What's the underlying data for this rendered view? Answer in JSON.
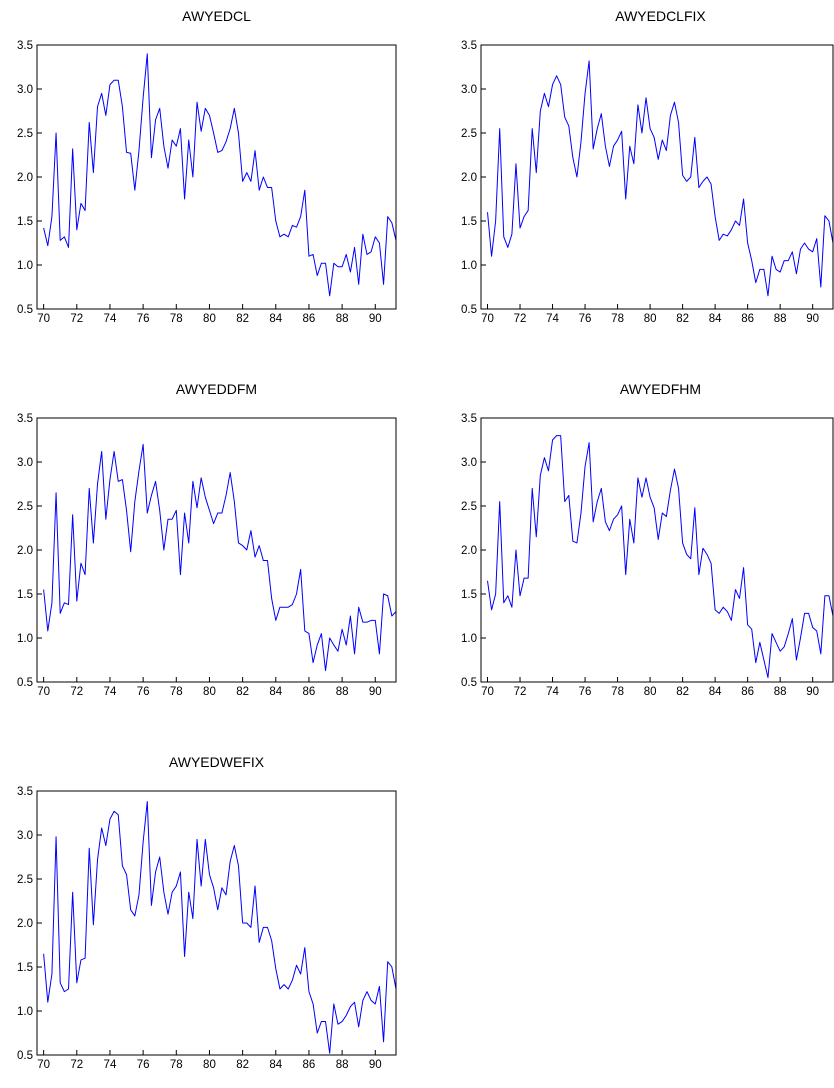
{
  "chart_data": [
    {
      "type": "line",
      "title": "AWYEDCL",
      "color": "#0000ff",
      "x": [
        70,
        70.25,
        70.5,
        70.75,
        71,
        71.25,
        71.5,
        71.75,
        72,
        72.25,
        72.5,
        72.75,
        73,
        73.25,
        73.5,
        73.75,
        74,
        74.25,
        74.5,
        74.75,
        75,
        75.25,
        75.5,
        75.75,
        76,
        76.25,
        76.5,
        76.75,
        77,
        77.25,
        77.5,
        77.75,
        78,
        78.25,
        78.5,
        78.75,
        79,
        79.25,
        79.5,
        79.75,
        80,
        80.25,
        80.5,
        80.75,
        81,
        81.25,
        81.5,
        81.75,
        82,
        82.25,
        82.5,
        82.75,
        83,
        83.25,
        83.5,
        83.75,
        84,
        84.25,
        84.5,
        84.75,
        85,
        85.25,
        85.5,
        85.75,
        86,
        86.25,
        86.5,
        86.75,
        87,
        87.25,
        87.5,
        87.75,
        88,
        88.25,
        88.5,
        88.75,
        89,
        89.25,
        89.5,
        89.75,
        90,
        90.25,
        90.5,
        90.75,
        91,
        91.25
      ],
      "values": [
        1.42,
        1.22,
        1.55,
        2.5,
        1.28,
        1.32,
        1.2,
        2.32,
        1.4,
        1.7,
        1.62,
        2.62,
        2.05,
        2.8,
        2.95,
        2.7,
        3.05,
        3.1,
        3.1,
        2.8,
        2.28,
        2.27,
        1.85,
        2.3,
        2.9,
        3.4,
        2.22,
        2.65,
        2.78,
        2.35,
        2.1,
        2.42,
        2.35,
        2.55,
        1.75,
        2.42,
        2.0,
        2.85,
        2.52,
        2.78,
        2.7,
        2.5,
        2.28,
        2.3,
        2.4,
        2.55,
        2.78,
        2.5,
        1.95,
        2.05,
        1.95,
        2.3,
        1.85,
        2.0,
        1.88,
        1.88,
        1.5,
        1.32,
        1.35,
        1.32,
        1.45,
        1.43,
        1.55,
        1.85,
        1.1,
        1.12,
        0.88,
        1.02,
        1.02,
        0.65,
        1.02,
        0.98,
        0.98,
        1.12,
        0.92,
        1.2,
        0.78,
        1.35,
        1.12,
        1.15,
        1.32,
        1.25,
        0.78,
        1.55,
        1.48,
        1.28
      ],
      "xlim": [
        69.6,
        91.25
      ],
      "xticks": [
        70,
        72,
        74,
        76,
        78,
        80,
        82,
        84,
        86,
        88,
        90
      ],
      "ylim": [
        0.5,
        3.5
      ],
      "yticks": [
        0.5,
        {
          "value": 1,
          "label": "1.0"
        },
        1.5,
        {
          "value": 2,
          "label": "2.0"
        },
        2.5,
        {
          "value": 3,
          "label": "3.0"
        },
        3.5
      ]
    },
    {
      "type": "line",
      "title": "AWYEDCLFIX",
      "color": "#0000ff",
      "x": [
        70,
        70.25,
        70.5,
        70.75,
        71,
        71.25,
        71.5,
        71.75,
        72,
        72.25,
        72.5,
        72.75,
        73,
        73.25,
        73.5,
        73.75,
        74,
        74.25,
        74.5,
        74.75,
        75,
        75.25,
        75.5,
        75.75,
        76,
        76.25,
        76.5,
        76.75,
        77,
        77.25,
        77.5,
        77.75,
        78,
        78.25,
        78.5,
        78.75,
        79,
        79.25,
        79.5,
        79.75,
        80,
        80.25,
        80.5,
        80.75,
        81,
        81.25,
        81.5,
        81.75,
        82,
        82.25,
        82.5,
        82.75,
        83,
        83.25,
        83.5,
        83.75,
        84,
        84.25,
        84.5,
        84.75,
        85,
        85.25,
        85.5,
        85.75,
        86,
        86.25,
        86.5,
        86.75,
        87,
        87.25,
        87.5,
        87.75,
        88,
        88.25,
        88.5,
        88.75,
        89,
        89.25,
        89.5,
        89.75,
        90,
        90.25,
        90.5,
        90.75,
        91,
        91.25
      ],
      "values": [
        1.6,
        1.1,
        1.5,
        2.55,
        1.32,
        1.2,
        1.35,
        2.15,
        1.42,
        1.55,
        1.62,
        2.55,
        2.05,
        2.75,
        2.95,
        2.8,
        3.05,
        3.15,
        3.05,
        2.68,
        2.58,
        2.22,
        2.0,
        2.4,
        2.95,
        3.32,
        2.32,
        2.55,
        2.72,
        2.35,
        2.12,
        2.35,
        2.42,
        2.52,
        1.75,
        2.35,
        2.15,
        2.82,
        2.5,
        2.9,
        2.55,
        2.45,
        2.2,
        2.42,
        2.3,
        2.7,
        2.85,
        2.62,
        2.02,
        1.95,
        2.0,
        2.45,
        1.88,
        1.95,
        2.0,
        1.92,
        1.55,
        1.28,
        1.35,
        1.33,
        1.4,
        1.5,
        1.45,
        1.75,
        1.25,
        1.05,
        0.8,
        0.95,
        0.95,
        0.65,
        1.1,
        0.95,
        0.92,
        1.05,
        1.05,
        1.15,
        0.9,
        1.18,
        1.25,
        1.18,
        1.15,
        1.3,
        0.75,
        1.56,
        1.5,
        1.25
      ],
      "xlim": [
        69.6,
        91.25
      ],
      "xticks": [
        70,
        72,
        74,
        76,
        78,
        80,
        82,
        84,
        86,
        88,
        90
      ],
      "ylim": [
        0.5,
        3.5
      ],
      "yticks": [
        0.5,
        {
          "value": 1,
          "label": "1.0"
        },
        1.5,
        {
          "value": 2,
          "label": "2.0"
        },
        2.5,
        {
          "value": 3,
          "label": "3.0"
        },
        3.5
      ]
    },
    {
      "type": "line",
      "title": "AWYEDDFM",
      "color": "#0000ff",
      "x": [
        70,
        70.25,
        70.5,
        70.75,
        71,
        71.25,
        71.5,
        71.75,
        72,
        72.25,
        72.5,
        72.75,
        73,
        73.25,
        73.5,
        73.75,
        74,
        74.25,
        74.5,
        74.75,
        75,
        75.25,
        75.5,
        75.75,
        76,
        76.25,
        76.5,
        76.75,
        77,
        77.25,
        77.5,
        77.75,
        78,
        78.25,
        78.5,
        78.75,
        79,
        79.25,
        79.5,
        79.75,
        80,
        80.25,
        80.5,
        80.75,
        81,
        81.25,
        81.5,
        81.75,
        82,
        82.25,
        82.5,
        82.75,
        83,
        83.25,
        83.5,
        83.75,
        84,
        84.25,
        84.5,
        84.75,
        85,
        85.25,
        85.5,
        85.75,
        86,
        86.25,
        86.5,
        86.75,
        87,
        87.25,
        87.5,
        87.75,
        88,
        88.25,
        88.5,
        88.75,
        89,
        89.25,
        89.5,
        89.75,
        90,
        90.25,
        90.5,
        90.75,
        91,
        91.25
      ],
      "values": [
        1.55,
        1.08,
        1.4,
        2.65,
        1.28,
        1.4,
        1.38,
        2.4,
        1.42,
        1.85,
        1.72,
        2.7,
        2.08,
        2.75,
        3.12,
        2.35,
        2.8,
        3.12,
        2.78,
        2.8,
        2.45,
        1.98,
        2.55,
        2.9,
        3.2,
        2.42,
        2.62,
        2.78,
        2.45,
        2.0,
        2.35,
        2.35,
        2.45,
        1.72,
        2.42,
        2.08,
        2.78,
        2.48,
        2.82,
        2.6,
        2.45,
        2.3,
        2.42,
        2.42,
        2.62,
        2.88,
        2.55,
        2.08,
        2.05,
        2.0,
        2.22,
        1.92,
        2.05,
        1.88,
        1.88,
        1.45,
        1.2,
        1.35,
        1.35,
        1.35,
        1.38,
        1.5,
        1.78,
        1.08,
        1.05,
        0.72,
        0.92,
        1.05,
        0.63,
        1.0,
        0.92,
        0.85,
        1.1,
        0.92,
        1.25,
        0.82,
        1.35,
        1.18,
        1.18,
        1.2,
        1.2,
        0.82,
        1.5,
        1.48,
        1.25,
        1.3
      ],
      "xlim": [
        69.6,
        91.25
      ],
      "xticks": [
        70,
        72,
        74,
        76,
        78,
        80,
        82,
        84,
        86,
        88,
        90
      ],
      "ylim": [
        0.5,
        3.5
      ],
      "yticks": [
        0.5,
        {
          "value": 1,
          "label": "1.0"
        },
        1.5,
        {
          "value": 2,
          "label": "2.0"
        },
        2.5,
        {
          "value": 3,
          "label": "3.0"
        },
        3.5
      ]
    },
    {
      "type": "line",
      "title": "AWYEDFHM",
      "color": "#0000ff",
      "x": [
        70,
        70.25,
        70.5,
        70.75,
        71,
        71.25,
        71.5,
        71.75,
        72,
        72.25,
        72.5,
        72.75,
        73,
        73.25,
        73.5,
        73.75,
        74,
        74.25,
        74.5,
        74.75,
        75,
        75.25,
        75.5,
        75.75,
        76,
        76.25,
        76.5,
        76.75,
        77,
        77.25,
        77.5,
        77.75,
        78,
        78.25,
        78.5,
        78.75,
        79,
        79.25,
        79.5,
        79.75,
        80,
        80.25,
        80.5,
        80.75,
        81,
        81.25,
        81.5,
        81.75,
        82,
        82.25,
        82.5,
        82.75,
        83,
        83.25,
        83.5,
        83.75,
        84,
        84.25,
        84.5,
        84.75,
        85,
        85.25,
        85.5,
        85.75,
        86,
        86.25,
        86.5,
        86.75,
        87,
        87.25,
        87.5,
        87.75,
        88,
        88.25,
        88.5,
        88.75,
        89,
        89.25,
        89.5,
        89.75,
        90,
        90.25,
        90.5,
        90.75,
        91,
        91.25
      ],
      "values": [
        1.65,
        1.32,
        1.5,
        2.55,
        1.4,
        1.48,
        1.35,
        2.0,
        1.48,
        1.68,
        1.68,
        2.7,
        2.15,
        2.85,
        3.05,
        2.9,
        3.25,
        3.3,
        3.3,
        2.55,
        2.62,
        2.1,
        2.08,
        2.42,
        2.95,
        3.22,
        2.32,
        2.55,
        2.7,
        2.32,
        2.22,
        2.35,
        2.4,
        2.5,
        1.72,
        2.35,
        2.08,
        2.82,
        2.6,
        2.82,
        2.6,
        2.48,
        2.12,
        2.42,
        2.38,
        2.68,
        2.92,
        2.7,
        2.08,
        1.95,
        1.9,
        2.48,
        1.72,
        2.02,
        1.95,
        1.85,
        1.32,
        1.28,
        1.35,
        1.3,
        1.2,
        1.55,
        1.45,
        1.8,
        1.15,
        1.1,
        0.72,
        0.95,
        0.75,
        0.55,
        1.05,
        0.95,
        0.85,
        0.9,
        1.05,
        1.22,
        0.75,
        1.0,
        1.28,
        1.28,
        1.12,
        1.08,
        0.82,
        1.48,
        1.48,
        1.25
      ],
      "xlim": [
        69.6,
        91.25
      ],
      "xticks": [
        70,
        72,
        74,
        76,
        78,
        80,
        82,
        84,
        86,
        88,
        90
      ],
      "ylim": [
        0.5,
        3.5
      ],
      "yticks": [
        0.5,
        {
          "value": 1,
          "label": "1.0"
        },
        1.5,
        {
          "value": 2,
          "label": "2.0"
        },
        2.5,
        {
          "value": 3,
          "label": "3.0"
        },
        3.5
      ]
    },
    {
      "type": "line",
      "title": "AWYEDWEFIX",
      "color": "#0000ff",
      "x": [
        70,
        70.25,
        70.5,
        70.75,
        71,
        71.25,
        71.5,
        71.75,
        72,
        72.25,
        72.5,
        72.75,
        73,
        73.25,
        73.5,
        73.75,
        74,
        74.25,
        74.5,
        74.75,
        75,
        75.25,
        75.5,
        75.75,
        76,
        76.25,
        76.5,
        76.75,
        77,
        77.25,
        77.5,
        77.75,
        78,
        78.25,
        78.5,
        78.75,
        79,
        79.25,
        79.5,
        79.75,
        80,
        80.25,
        80.5,
        80.75,
        81,
        81.25,
        81.5,
        81.75,
        82,
        82.25,
        82.5,
        82.75,
        83,
        83.25,
        83.5,
        83.75,
        84,
        84.25,
        84.5,
        84.75,
        85,
        85.25,
        85.5,
        85.75,
        86,
        86.25,
        86.5,
        86.75,
        87,
        87.25,
        87.5,
        87.75,
        88,
        88.25,
        88.5,
        88.75,
        89,
        89.25,
        89.5,
        89.75,
        90,
        90.25,
        90.5,
        90.75,
        91,
        91.25
      ],
      "values": [
        1.65,
        1.1,
        1.42,
        2.98,
        1.32,
        1.22,
        1.25,
        2.35,
        1.32,
        1.58,
        1.6,
        2.85,
        1.98,
        2.72,
        3.08,
        2.88,
        3.18,
        3.27,
        3.23,
        2.65,
        2.55,
        2.15,
        2.08,
        2.32,
        2.92,
        3.38,
        2.2,
        2.58,
        2.75,
        2.35,
        2.1,
        2.35,
        2.42,
        2.58,
        1.62,
        2.35,
        2.05,
        2.95,
        2.42,
        2.95,
        2.55,
        2.4,
        2.15,
        2.4,
        2.32,
        2.7,
        2.88,
        2.65,
        2.0,
        2.0,
        1.95,
        2.42,
        1.78,
        1.95,
        1.95,
        1.8,
        1.48,
        1.25,
        1.3,
        1.25,
        1.35,
        1.52,
        1.42,
        1.72,
        1.22,
        1.08,
        0.75,
        0.88,
        0.88,
        0.52,
        1.08,
        0.85,
        0.88,
        0.95,
        1.05,
        1.1,
        0.82,
        1.12,
        1.22,
        1.12,
        1.08,
        1.28,
        0.65,
        1.56,
        1.5,
        1.25
      ],
      "xlim": [
        69.6,
        91.25
      ],
      "xticks": [
        70,
        72,
        74,
        76,
        78,
        80,
        82,
        84,
        86,
        88,
        90
      ],
      "ylim": [
        0.5,
        3.5
      ],
      "yticks": [
        0.5,
        {
          "value": 1,
          "label": "1.0"
        },
        1.5,
        {
          "value": 2,
          "label": "2.0"
        },
        2.5,
        {
          "value": 3,
          "label": "3.0"
        },
        3.5
      ]
    }
  ]
}
